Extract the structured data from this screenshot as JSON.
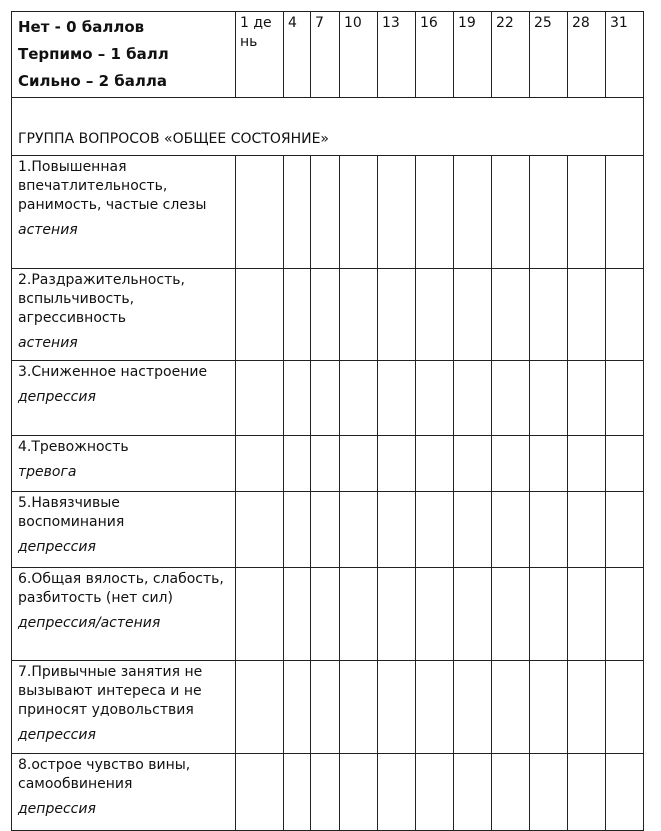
{
  "legend": [
    "Нет - 0 баллов",
    "Терпимо – 1 балл",
    "Сильно – 2 балла"
  ],
  "day_columns": [
    "1 день",
    "4",
    "7",
    "10",
    "13",
    "16",
    "19",
    "22",
    "25",
    "28",
    "31"
  ],
  "group_title": "ГРУППА ВОПРОСОВ «ОБЩЕЕ СОСТОЯНИЕ»",
  "questions": [
    {
      "text": "1.Повышенная впечатлительность, ранимость, частые слезы",
      "category": "астения"
    },
    {
      "text": "2.Раздражительность, вспыльчивость, агрессивность",
      "category": "астения"
    },
    {
      "text": "3.Сниженное настроение",
      "category": "депрессия"
    },
    {
      "text": "4.Тревожность",
      "category": "тревога"
    },
    {
      "text": "5.Навязчивые воспоминания",
      "category": "депрессия"
    },
    {
      "text": "6.Общая вялость, слабость, разбитость (нет сил)",
      "category": "депрессия/астения"
    },
    {
      "text": "7.Привычные занятия не вызывают интереса и не приносят удовольствия",
      "category": "депрессия"
    },
    {
      "text": "8.острое чувство вины, самообвинения",
      "category": "депрессия"
    }
  ]
}
